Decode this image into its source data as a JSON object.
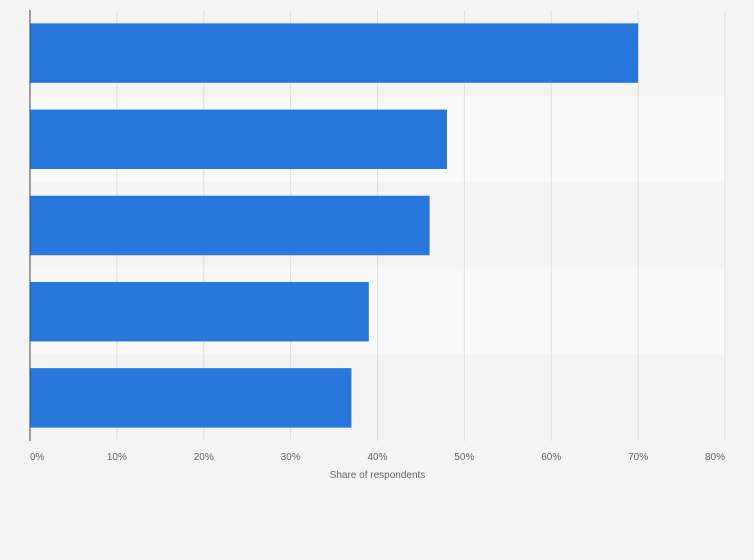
{
  "chart_data": {
    "type": "bar",
    "orientation": "horizontal",
    "categories": [
      "",
      "",
      "",
      "",
      ""
    ],
    "values": [
      70,
      48,
      46,
      39,
      37
    ],
    "xlabel": "Share of respondents",
    "ylabel": "",
    "xlim": [
      0,
      80
    ],
    "x_ticks": [
      0,
      10,
      20,
      30,
      40,
      50,
      60,
      70,
      80
    ],
    "x_tick_labels": [
      "0%",
      "10%",
      "20%",
      "30%",
      "40%",
      "50%",
      "60%",
      "70%",
      "80%"
    ],
    "grid": true,
    "legend": "none",
    "colors": {
      "bar": "#2777dd",
      "background": "#f4f4f4",
      "band_alt": "#f9f9f9",
      "grid": "#dedede",
      "axis": "#444444",
      "text": "#666666"
    }
  }
}
